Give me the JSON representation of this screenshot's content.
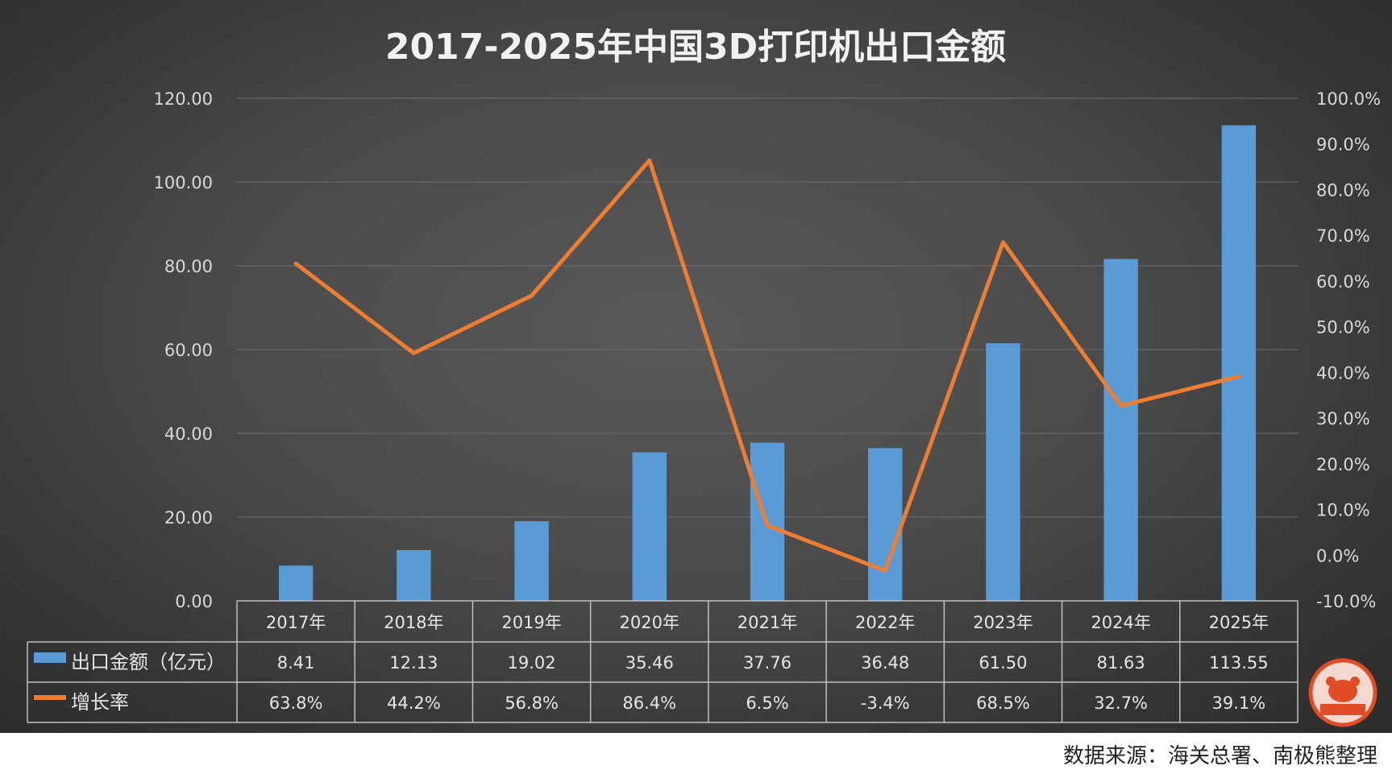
{
  "colors": {
    "bar": "#5b9bd5",
    "line": "#ed7d31",
    "logo": "#e04c25"
  },
  "chart_data": {
    "type": "bar",
    "title": "2017-2025年中国3D打印机出口金额",
    "categories": [
      "2017年",
      "2018年",
      "2019年",
      "2020年",
      "2021年",
      "2022年",
      "2023年",
      "2024年",
      "2025年"
    ],
    "series": [
      {
        "name": "出口金额（亿元）",
        "type": "bar",
        "axis": "left",
        "values": [
          8.41,
          12.13,
          19.02,
          35.46,
          37.76,
          36.48,
          61.5,
          81.63,
          113.55
        ],
        "labels": [
          "8.41",
          "12.13",
          "19.02",
          "35.46",
          "37.76",
          "36.48",
          "61.50",
          "81.63",
          "113.55"
        ]
      },
      {
        "name": "增长率",
        "type": "line",
        "axis": "right",
        "values": [
          63.8,
          44.2,
          56.8,
          86.4,
          6.5,
          -3.4,
          68.5,
          32.7,
          39.1
        ],
        "labels": [
          "63.8%",
          "44.2%",
          "56.8%",
          "86.4%",
          "6.5%",
          "-3.4%",
          "68.5%",
          "32.7%",
          "39.1%"
        ]
      }
    ],
    "y_left": {
      "range": [
        0,
        120
      ],
      "ticks": [
        "0.00",
        "20.00",
        "40.00",
        "60.00",
        "80.00",
        "100.00",
        "120.00"
      ]
    },
    "y_right": {
      "range": [
        -10,
        100
      ],
      "ticks": [
        "-10.0%",
        "0.0%",
        "10.0%",
        "20.0%",
        "30.0%",
        "40.0%",
        "50.0%",
        "60.0%",
        "70.0%",
        "80.0%",
        "90.0%",
        "100.0%"
      ]
    },
    "grid": true,
    "legend": "data-table"
  },
  "logo": {
    "text": "南极熊"
  },
  "source": "数据来源：海关总署、南极熊整理"
}
